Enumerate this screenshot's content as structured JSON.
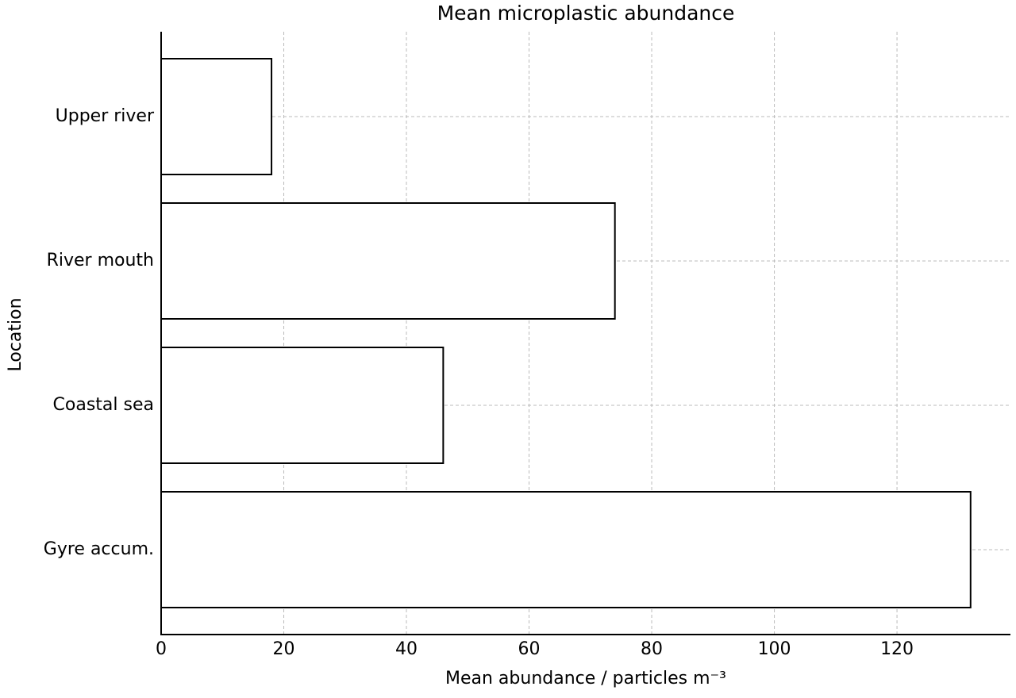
{
  "chart_data": {
    "type": "barh",
    "title": "Mean microplastic abundance",
    "xlabel": "Mean abundance / particles m⁻³",
    "ylabel": "Location",
    "categories": [
      "Upper river",
      "River mouth",
      "Coastal sea",
      "Gyre accum."
    ],
    "values": [
      18,
      74,
      46,
      132
    ],
    "color": "#ffffff",
    "edgecolor": "#000000",
    "xlim": [
      0,
      138.5
    ],
    "xticks": [
      0,
      20,
      40,
      60,
      80,
      100,
      120
    ],
    "grid": true
  }
}
